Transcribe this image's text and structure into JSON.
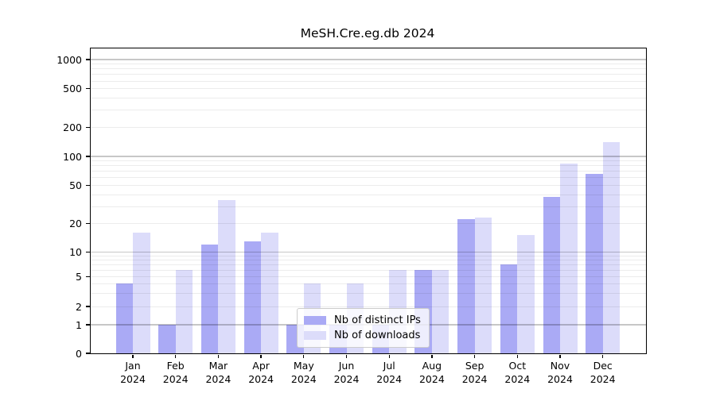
{
  "chart_data": {
    "type": "bar",
    "title": "MeSH.Cre.eg.db 2024",
    "categories": [
      "Jan",
      "Feb",
      "Mar",
      "Apr",
      "May",
      "Jun",
      "Jul",
      "Aug",
      "Sep",
      "Oct",
      "Nov",
      "Dec"
    ],
    "category_year": "2024",
    "series": [
      {
        "name": "Nb of distinct IPs",
        "color": "#aaaaf5",
        "values": [
          4,
          1,
          12,
          13,
          1,
          1,
          1,
          6,
          22,
          7,
          38,
          66
        ]
      },
      {
        "name": "Nb of downloads",
        "color": "#dcdcfa",
        "values": [
          16,
          6,
          35,
          16,
          4,
          4,
          6,
          6,
          23,
          15,
          85,
          140
        ]
      }
    ],
    "xlabel": "",
    "ylabel": "",
    "yscale": "symlog",
    "yticks": [
      0,
      1,
      2,
      5,
      10,
      20,
      50,
      100,
      200,
      500,
      1000
    ],
    "ylim": [
      0,
      1300
    ],
    "grid": true,
    "legend_position": "lower center"
  }
}
